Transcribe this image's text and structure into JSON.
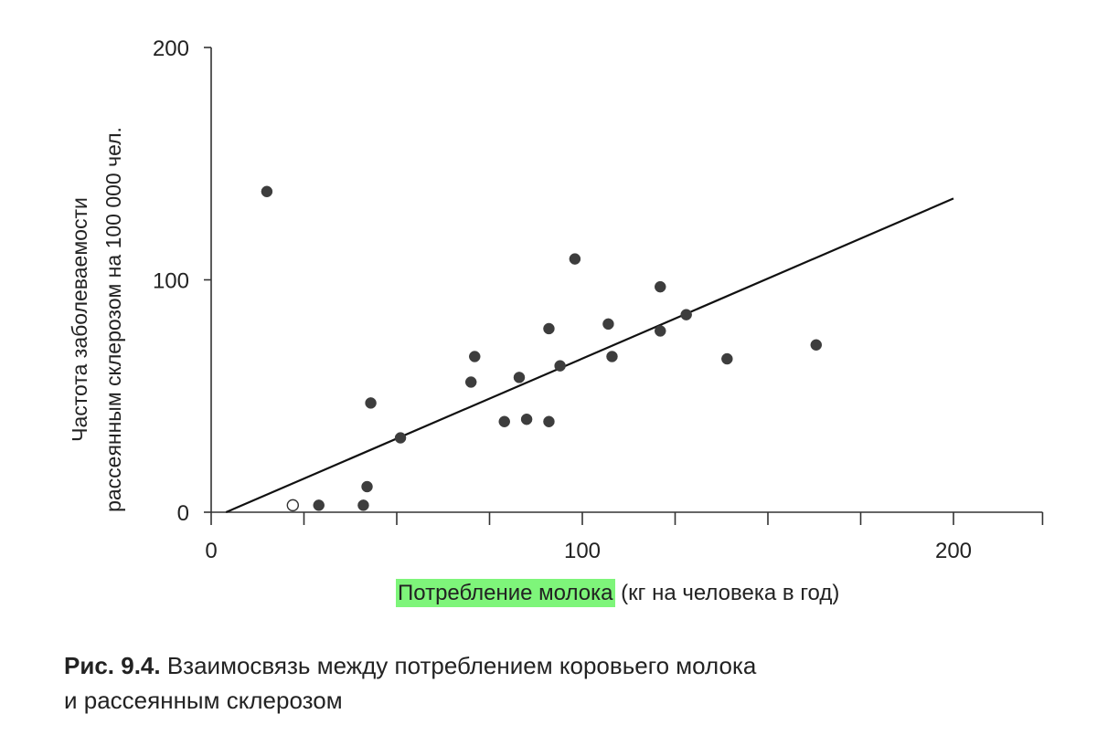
{
  "chart_data": {
    "type": "scatter",
    "xlabel_highlighted": "Потребление молока",
    "xlabel_rest": " (кг на человека в год)",
    "ylabel_line1": "Частота заболеваемости",
    "ylabel_line2": "рассеянным склерозом на 100 000 чел.",
    "xlim": [
      0,
      224
    ],
    "ylim": [
      0,
      200
    ],
    "x_ticks": [
      0,
      25,
      50,
      75,
      100,
      125,
      150,
      175,
      200,
      224
    ],
    "x_tick_labels": [
      {
        "value": 0,
        "label": "0"
      },
      {
        "value": 100,
        "label": "100"
      },
      {
        "value": 200,
        "label": "200"
      }
    ],
    "y_ticks": [
      {
        "value": 0,
        "label": "0"
      },
      {
        "value": 100,
        "label": "100"
      },
      {
        "value": 200,
        "label": "200"
      }
    ],
    "points": [
      {
        "x": 15,
        "y": 138,
        "filled": true
      },
      {
        "x": 22,
        "y": 3,
        "filled": false
      },
      {
        "x": 29,
        "y": 3,
        "filled": true
      },
      {
        "x": 41,
        "y": 3,
        "filled": true
      },
      {
        "x": 42,
        "y": 11,
        "filled": true
      },
      {
        "x": 43,
        "y": 47,
        "filled": true
      },
      {
        "x": 51,
        "y": 32,
        "filled": true
      },
      {
        "x": 70,
        "y": 56,
        "filled": true
      },
      {
        "x": 71,
        "y": 67,
        "filled": true
      },
      {
        "x": 79,
        "y": 39,
        "filled": true
      },
      {
        "x": 83,
        "y": 58,
        "filled": true
      },
      {
        "x": 85,
        "y": 40,
        "filled": true
      },
      {
        "x": 91,
        "y": 39,
        "filled": true
      },
      {
        "x": 91,
        "y": 79,
        "filled": true
      },
      {
        "x": 94,
        "y": 63,
        "filled": true
      },
      {
        "x": 98,
        "y": 109,
        "filled": true
      },
      {
        "x": 107,
        "y": 81,
        "filled": true
      },
      {
        "x": 108,
        "y": 67,
        "filled": true
      },
      {
        "x": 121,
        "y": 97,
        "filled": true
      },
      {
        "x": 121,
        "y": 78,
        "filled": true
      },
      {
        "x": 128,
        "y": 85,
        "filled": true
      },
      {
        "x": 139,
        "y": 66,
        "filled": true
      },
      {
        "x": 163,
        "y": 72,
        "filled": true
      }
    ],
    "trend_line": {
      "x1": 4,
      "y1": 0,
      "x2": 200,
      "y2": 135
    }
  },
  "caption": {
    "number": "Рис. 9.4.",
    "line1": " Взаимосвязь между потреблением коровьего молока",
    "line2": "и рассеянным склерозом"
  }
}
